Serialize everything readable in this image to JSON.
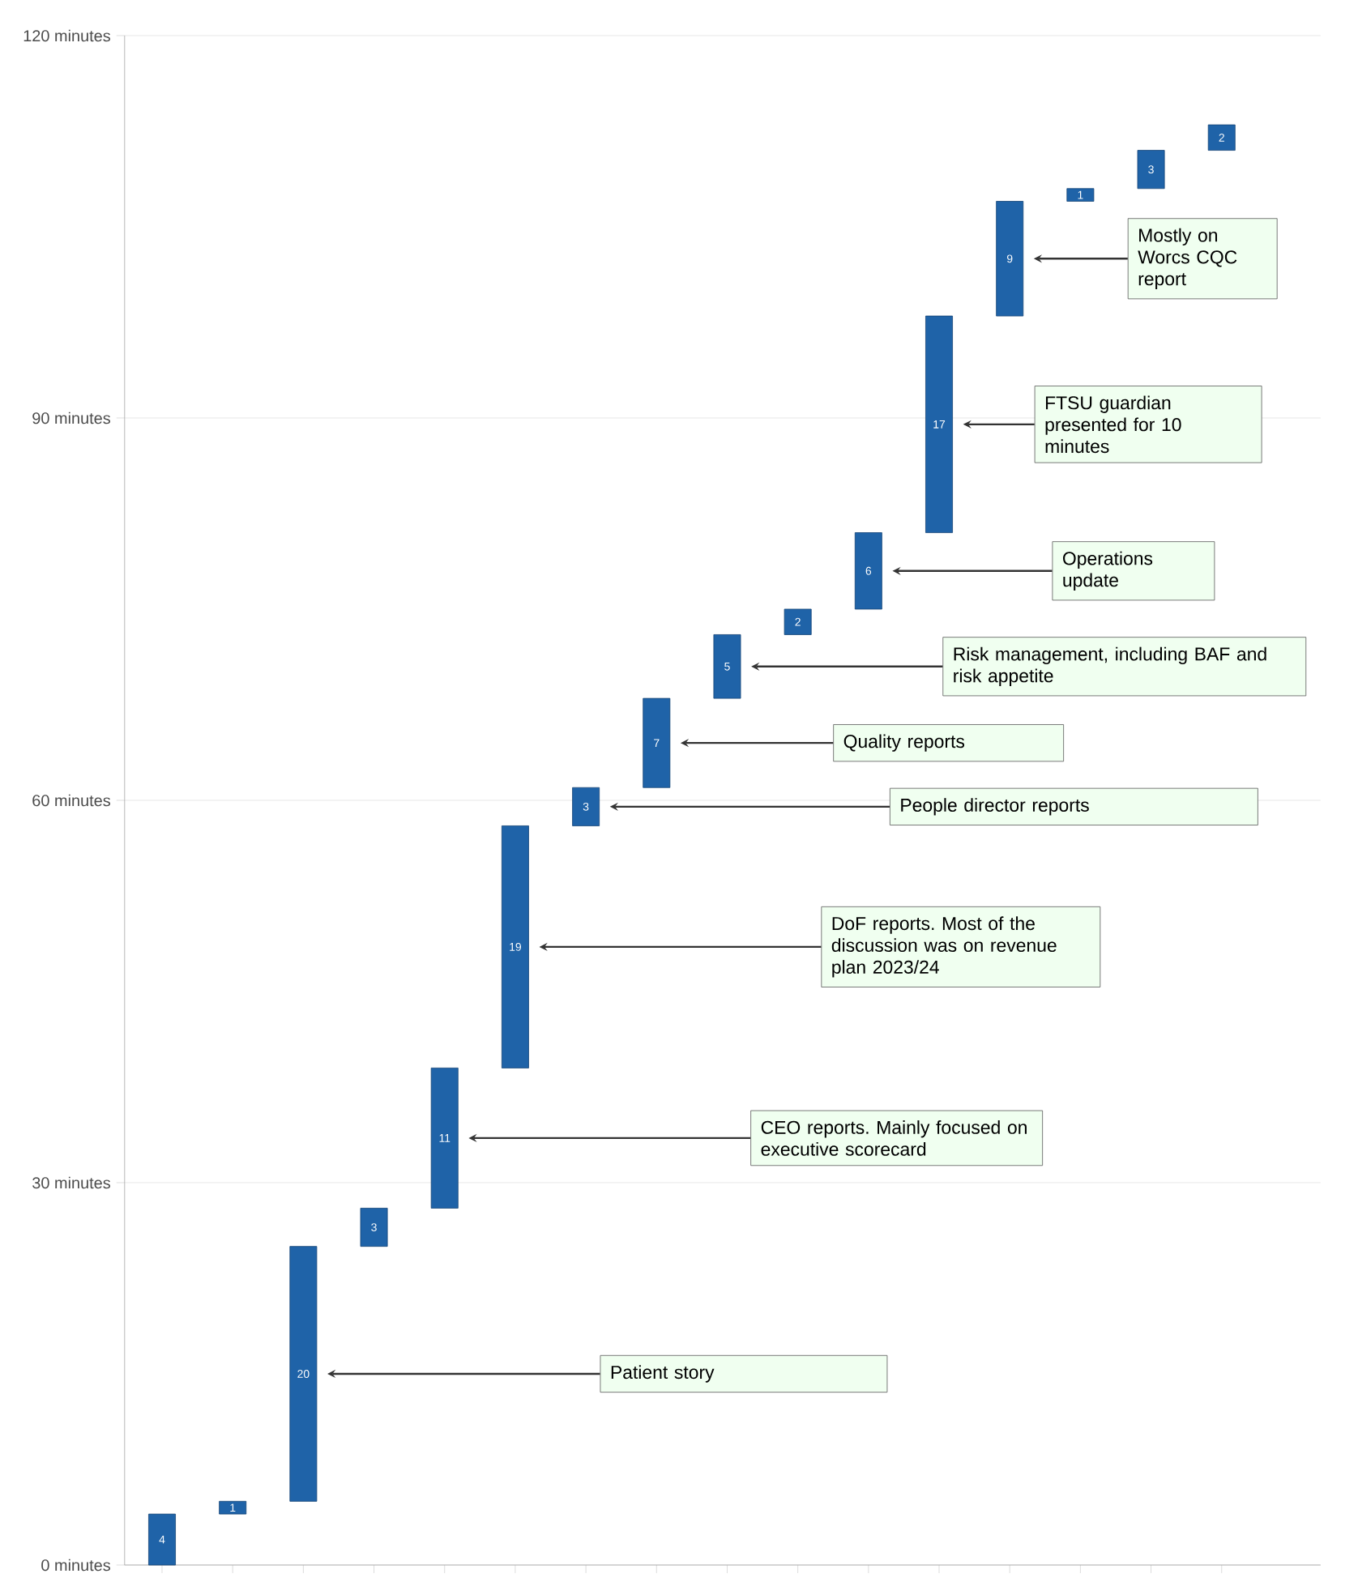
{
  "chart_data": {
    "type": "bar",
    "categories": [
      null,
      null,
      null,
      null,
      null,
      null,
      null,
      null,
      null,
      null,
      null,
      null,
      null,
      null,
      null,
      null
    ],
    "values": [
      4,
      1,
      20,
      3,
      11,
      19,
      3,
      7,
      5,
      2,
      6,
      17,
      9,
      1,
      3,
      2
    ],
    "base": [
      0,
      4,
      5,
      25,
      28,
      39,
      58,
      61,
      68,
      73,
      75,
      81,
      98,
      107,
      108,
      111
    ],
    "color": "#1f63a8",
    "data_labels": true,
    "ylim": [
      0,
      120
    ],
    "yticks": [
      {
        "value": 0,
        "label": "0 minutes"
      },
      {
        "value": 30,
        "label": "30 minutes"
      },
      {
        "value": 60,
        "label": "60 minutes"
      },
      {
        "value": 90,
        "label": "90 minutes"
      },
      {
        "value": 120,
        "label": "120 minutes"
      }
    ],
    "grid": "y",
    "tick_labels": "y",
    "annotations": [
      "Patient story",
      "CEO reports. Mainly focused on executive scorecard",
      "DoF reports. Most of the discussion was on revenue plan 2023/24",
      "People director reports",
      "Quality reports",
      "Risk management, including BAF and risk appetite",
      "Operations update",
      "FTSU guardian presented for 10 minutes",
      "Mostly on Worcs CQC report"
    ]
  }
}
